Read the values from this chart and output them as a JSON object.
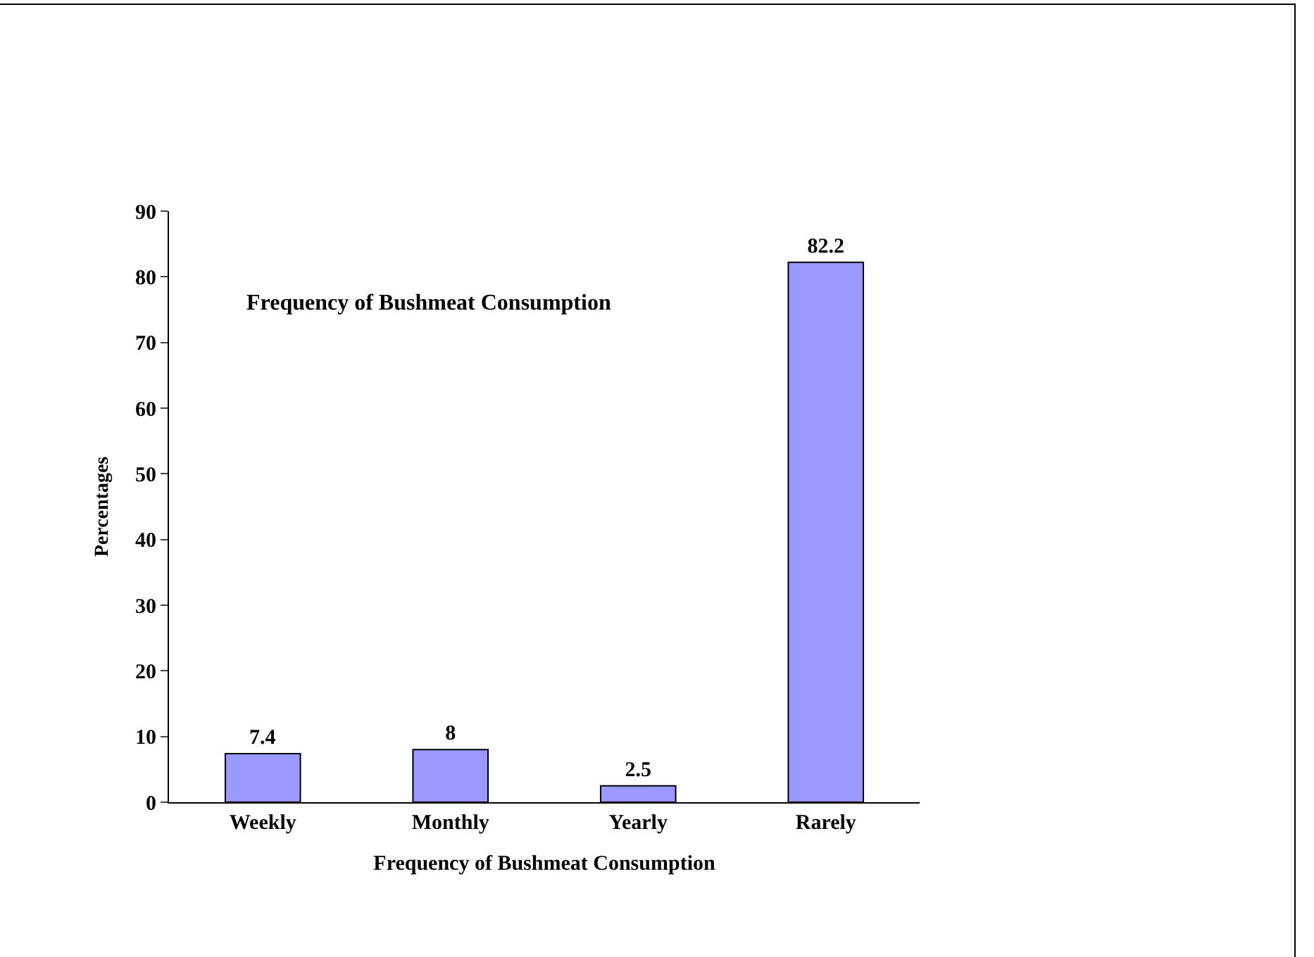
{
  "chart_data": {
    "type": "bar",
    "title": "Frequency of Bushmeat Consumption",
    "xlabel": "Frequency of Bushmeat Consumption",
    "ylabel": "Percentages",
    "categories": [
      "Weekly",
      "Monthly",
      "Yearly",
      "Rarely"
    ],
    "values": [
      7.4,
      8,
      2.5,
      82.2
    ],
    "color": "#9999ff",
    "ylim": [
      0,
      90
    ],
    "yticks": [
      0,
      10,
      20,
      30,
      40,
      50,
      60,
      70,
      80,
      90
    ],
    "data_labels": true
  }
}
